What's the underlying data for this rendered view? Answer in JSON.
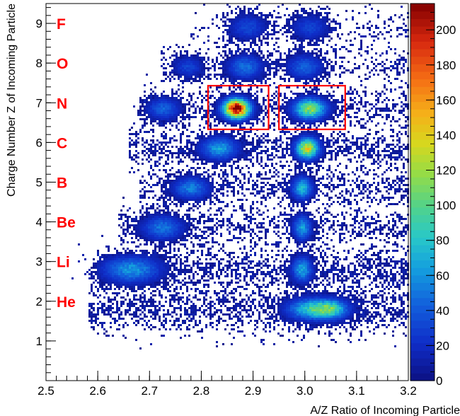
{
  "chart_data": {
    "type": "heatmap",
    "title": "",
    "xlabel": "A/Z Ratio of Incoming Particle",
    "ylabel": "Charge Number Z of Incoming Particle",
    "xlim": [
      2.5,
      3.2
    ],
    "ylim": [
      0,
      9.5
    ],
    "x_ticks": [
      "2.5",
      "2.6",
      "2.7",
      "2.8",
      "2.9",
      "3.0",
      "3.1",
      "3.2"
    ],
    "y_ticks": [
      "1",
      "2",
      "3",
      "4",
      "5",
      "6",
      "7",
      "8",
      "9"
    ],
    "colorbar": {
      "range": [
        0,
        215
      ],
      "ticks": [
        "0",
        "20",
        "40",
        "60",
        "80",
        "100",
        "120",
        "140",
        "160",
        "180",
        "200"
      ],
      "colormap": "rainbow"
    },
    "element_labels": [
      {
        "z": 2,
        "text": "He"
      },
      {
        "z": 3,
        "text": "Li"
      },
      {
        "z": 4,
        "text": "Be"
      },
      {
        "z": 5,
        "text": "B"
      },
      {
        "z": 6,
        "text": "C"
      },
      {
        "z": 7,
        "text": "N"
      },
      {
        "z": 8,
        "text": "O"
      },
      {
        "z": 9,
        "text": "F"
      }
    ],
    "clusters": [
      {
        "x": 2.665,
        "y": 2.8,
        "sx": 0.035,
        "sy": 0.22,
        "peak": 55
      },
      {
        "x": 2.995,
        "y": 2.8,
        "sx": 0.012,
        "sy": 0.2,
        "peak": 62
      },
      {
        "x": 3.01,
        "y": 1.8,
        "sx": 0.028,
        "sy": 0.17,
        "peak": 72
      },
      {
        "x": 3.05,
        "y": 1.8,
        "sx": 0.022,
        "sy": 0.16,
        "peak": 78
      },
      {
        "x": 2.725,
        "y": 3.85,
        "sx": 0.025,
        "sy": 0.2,
        "peak": 45
      },
      {
        "x": 2.995,
        "y": 3.85,
        "sx": 0.011,
        "sy": 0.2,
        "peak": 60
      },
      {
        "x": 2.78,
        "y": 4.85,
        "sx": 0.022,
        "sy": 0.18,
        "peak": 48
      },
      {
        "x": 2.995,
        "y": 4.85,
        "sx": 0.012,
        "sy": 0.18,
        "peak": 72
      },
      {
        "x": 2.835,
        "y": 5.85,
        "sx": 0.022,
        "sy": 0.18,
        "peak": 60
      },
      {
        "x": 3.005,
        "y": 5.85,
        "sx": 0.014,
        "sy": 0.17,
        "peak": 130
      },
      {
        "x": 2.727,
        "y": 6.85,
        "sx": 0.02,
        "sy": 0.18,
        "peak": 38
      },
      {
        "x": 2.868,
        "y": 6.85,
        "sx": 0.016,
        "sy": 0.16,
        "peak": 215
      },
      {
        "x": 3.01,
        "y": 6.85,
        "sx": 0.02,
        "sy": 0.17,
        "peak": 110
      },
      {
        "x": 2.775,
        "y": 7.9,
        "sx": 0.018,
        "sy": 0.18,
        "peak": 28
      },
      {
        "x": 2.885,
        "y": 7.9,
        "sx": 0.022,
        "sy": 0.2,
        "peak": 45
      },
      {
        "x": 3.0,
        "y": 7.9,
        "sx": 0.022,
        "sy": 0.2,
        "peak": 40
      },
      {
        "x": 2.89,
        "y": 8.9,
        "sx": 0.024,
        "sy": 0.22,
        "peak": 30
      },
      {
        "x": 3.01,
        "y": 8.9,
        "sx": 0.024,
        "sy": 0.22,
        "peak": 28
      }
    ],
    "bands": [
      {
        "y": 1.8,
        "x0": 2.58,
        "x1": 3.2,
        "sy": 0.35,
        "level": 6
      },
      {
        "y": 2.8,
        "x0": 2.6,
        "x1": 3.2,
        "sy": 0.3,
        "level": 6
      },
      {
        "y": 3.85,
        "x0": 2.64,
        "x1": 3.2,
        "sy": 0.28,
        "level": 5
      },
      {
        "y": 4.85,
        "x0": 2.68,
        "x1": 3.2,
        "sy": 0.28,
        "level": 5
      },
      {
        "y": 5.85,
        "x0": 2.66,
        "x1": 3.2,
        "sy": 0.28,
        "level": 6
      },
      {
        "y": 6.85,
        "x0": 2.68,
        "x1": 3.2,
        "sy": 0.28,
        "level": 5
      },
      {
        "y": 7.9,
        "x0": 2.72,
        "x1": 3.2,
        "sy": 0.3,
        "level": 3
      },
      {
        "y": 8.9,
        "x0": 2.78,
        "x1": 3.2,
        "sy": 0.3,
        "level": 2
      }
    ],
    "selection_boxes": [
      {
        "x0": 2.813,
        "x1": 2.93,
        "y0": 6.33,
        "y1": 7.43
      },
      {
        "x0": 2.95,
        "x1": 3.078,
        "y0": 6.33,
        "y1": 7.43
      }
    ],
    "grid": false
  },
  "colors": {
    "box": "#ff0000",
    "labels": "#ff0000",
    "background": "#ffffff"
  }
}
